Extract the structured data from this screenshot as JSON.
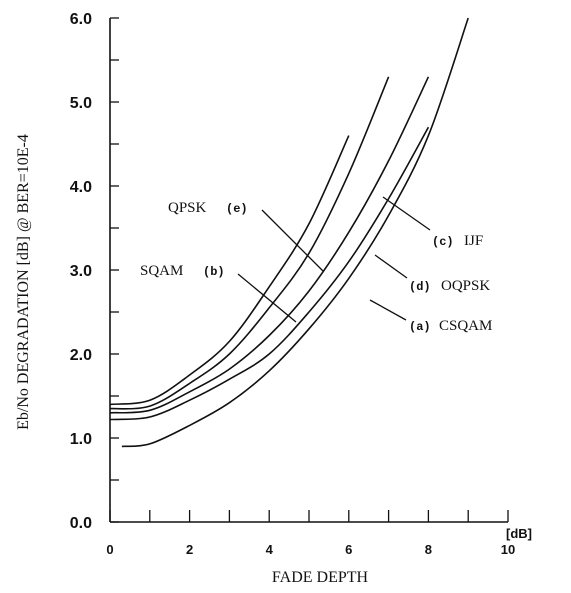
{
  "chart_data": {
    "type": "line",
    "title": "",
    "xlabel": "FADE DEPTH",
    "x_unit": "[dB]",
    "ylabel": "Eb/No DEGRADATION [dB] @ BER=10E-4",
    "xlim": [
      0,
      10
    ],
    "ylim": [
      0,
      6
    ],
    "xticks": [
      "0",
      "2",
      "4",
      "6",
      "8",
      "10"
    ],
    "yticks": [
      "0.0",
      "1.0",
      "2.0",
      "3.0",
      "4.0",
      "5.0",
      "6.0"
    ],
    "grid": false,
    "series": [
      {
        "name": "CSQAM",
        "tag": "(a)",
        "x": [
          0.3,
          1,
          2,
          3,
          4,
          5,
          6,
          7,
          8,
          9
        ],
        "y": [
          0.9,
          0.93,
          1.15,
          1.42,
          1.8,
          2.3,
          2.9,
          3.65,
          4.6,
          6.0
        ]
      },
      {
        "name": "SQAM",
        "tag": "(b)",
        "x": [
          0,
          1,
          2,
          3,
          4,
          5,
          6
        ],
        "y": [
          1.4,
          1.45,
          1.75,
          2.15,
          2.8,
          3.55,
          4.6
        ]
      },
      {
        "name": "IJF",
        "tag": "(c)",
        "x": [
          0,
          1,
          2,
          3,
          4,
          5,
          6,
          7,
          8
        ],
        "y": [
          1.3,
          1.33,
          1.55,
          1.82,
          2.22,
          2.75,
          3.45,
          4.3,
          5.3
        ]
      },
      {
        "name": "OQPSK",
        "tag": "(d)",
        "x": [
          0,
          1,
          2,
          3,
          4,
          5,
          6,
          7,
          8
        ],
        "y": [
          1.22,
          1.25,
          1.45,
          1.7,
          2.0,
          2.5,
          3.1,
          3.85,
          4.7
        ]
      },
      {
        "name": "QPSK",
        "tag": "(e)",
        "x": [
          0,
          1,
          2,
          3,
          4,
          5,
          6,
          7
        ],
        "y": [
          1.35,
          1.38,
          1.65,
          2.0,
          2.55,
          3.2,
          4.15,
          5.3
        ]
      }
    ]
  }
}
